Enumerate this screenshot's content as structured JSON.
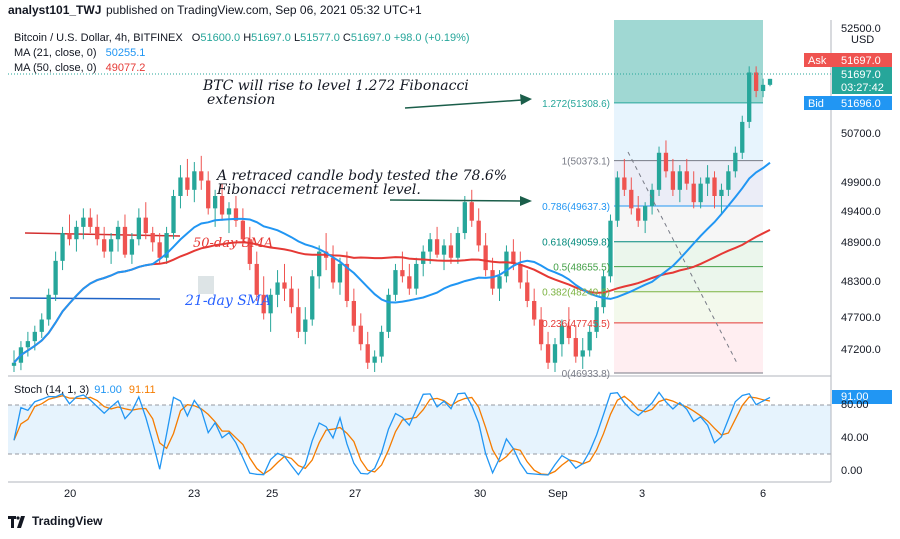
{
  "header": {
    "author": "analyst101_TWJ",
    "published_text": "published on TradingView.com, Sep 06, 2021 05:32 UTC+1"
  },
  "legend": {
    "symbol": "Bitcoin / U.S. Dollar, 4h, BITFINEX",
    "open_label": "O",
    "open": "51600.0",
    "high_label": "H",
    "high": "51697.0",
    "low_label": "L",
    "low": "51577.0",
    "close_label": "C",
    "close": "51697.0",
    "change": "+98.0 (+0.19%)",
    "ma21_label": "MA (21, close, 0)",
    "ma21_value": "50255.1",
    "ma50_label": "MA (50, close, 0)",
    "ma50_value": "49077.2"
  },
  "price_axis": {
    "currency": "USD",
    "ticks": [
      "52500.0",
      "50700.0",
      "49900.0",
      "49400.0",
      "48900.0",
      "48300.0",
      "47700.0",
      "47200.0"
    ],
    "ask_label": "Ask",
    "ask_value": "51697.0",
    "last_value": "51697.0",
    "countdown": "03:27:42",
    "bid_label": "Bid",
    "bid_value": "51696.0"
  },
  "stoch_panel": {
    "label": "Stoch (14, 1, 3)",
    "k_value": "91.00",
    "d_value": "91.11",
    "ticks": [
      "80.00",
      "40.00",
      "0.00"
    ]
  },
  "time_axis": {
    "ticks": [
      "20",
      "23",
      "25",
      "27",
      "30",
      "Sep",
      "3",
      "6"
    ]
  },
  "annotations": {
    "note_fib_extension_line1": "BTC will rise to level 1.272 Fibonacci",
    "note_fib_extension_line2": "extension",
    "note_retrace_line1": "A retraced candle body tested the 78.6%",
    "note_retrace_line2": "Fibonacci retracement level.",
    "label_50sma": "50-day SMA",
    "label_21sma": "21-day SMA"
  },
  "fib_levels": [
    {
      "label": "1.272(51308.6)",
      "price": 51308.6
    },
    {
      "label": "1(50373.1)",
      "price": 50373.1
    },
    {
      "label": "0.786(49637.3)",
      "price": 49637.3
    },
    {
      "label": "0.618(49059.8)",
      "price": 49059.8
    },
    {
      "label": "0.5(48655.5)",
      "price": 48655.5
    },
    {
      "label": "0.382(48249.6)",
      "price": 48249.6
    },
    {
      "label": "0.236(47745.5)",
      "price": 47745.5
    },
    {
      "label": "0(46933.8)",
      "price": 46933.8
    }
  ],
  "footer": {
    "brand": "TradingView"
  },
  "colors": {
    "up": "#26a69a",
    "down": "#ef5350",
    "ma21": "#2196f3",
    "ma50": "#e53935",
    "stoch_k": "#2196f3",
    "stoch_d": "#f57c00",
    "ask_bg": "#ef5350",
    "bid_bg": "#2196f3",
    "arrow": "#1b5e4a",
    "sma_label": "#2962ff",
    "sma50_label": "#e53935"
  },
  "chart_data": {
    "type": "candlestick",
    "price_range": [
      46933.8,
      52650
    ],
    "ohlc": [
      [
        47050,
        47300,
        46950,
        47100
      ],
      [
        47100,
        47450,
        46980,
        47350
      ],
      [
        47350,
        47600,
        47200,
        47450
      ],
      [
        47450,
        47700,
        47300,
        47600
      ],
      [
        47600,
        47900,
        47500,
        47800
      ],
      [
        47800,
        48300,
        47700,
        48200
      ],
      [
        48200,
        48900,
        48100,
        48750
      ],
      [
        48750,
        49300,
        48600,
        49200
      ],
      [
        49200,
        49500,
        49000,
        49100
      ],
      [
        49100,
        49400,
        48900,
        49300
      ],
      [
        49300,
        49600,
        49100,
        49450
      ],
      [
        49450,
        49600,
        49200,
        49300
      ],
      [
        49300,
        49500,
        49000,
        49100
      ],
      [
        49100,
        49300,
        48800,
        48900
      ],
      [
        48900,
        49200,
        48700,
        49100
      ],
      [
        49100,
        49400,
        48900,
        49300
      ],
      [
        49300,
        49500,
        48800,
        48850
      ],
      [
        48850,
        49200,
        48700,
        49100
      ],
      [
        49100,
        49600,
        49000,
        49450
      ],
      [
        49450,
        49700,
        49100,
        49200
      ],
      [
        49200,
        49300,
        48900,
        49050
      ],
      [
        49050,
        49200,
        48700,
        48800
      ],
      [
        48800,
        49300,
        48700,
        49200
      ],
      [
        49200,
        49900,
        49100,
        49800
      ],
      [
        49800,
        50300,
        49600,
        50100
      ],
      [
        50100,
        50400,
        49800,
        49900
      ],
      [
        49900,
        50350,
        49700,
        50200
      ],
      [
        50200,
        50450,
        49900,
        50050
      ],
      [
        50050,
        50200,
        49500,
        49600
      ],
      [
        49600,
        49900,
        49300,
        49800
      ],
      [
        49800,
        50000,
        49400,
        49500
      ],
      [
        49500,
        49700,
        49200,
        49600
      ],
      [
        49600,
        49800,
        49300,
        49400
      ],
      [
        49400,
        49600,
        49000,
        49100
      ],
      [
        49100,
        49300,
        48600,
        48700
      ],
      [
        48700,
        48900,
        48100,
        48200
      ],
      [
        48200,
        48500,
        47800,
        47900
      ],
      [
        47900,
        48300,
        47600,
        48200
      ],
      [
        48200,
        48600,
        48000,
        48400
      ],
      [
        48400,
        48700,
        48100,
        48300
      ],
      [
        48300,
        48500,
        47900,
        48000
      ],
      [
        48000,
        48300,
        47500,
        47600
      ],
      [
        47600,
        48000,
        47400,
        47800
      ],
      [
        47800,
        48600,
        47700,
        48500
      ],
      [
        48500,
        49000,
        48300,
        48900
      ],
      [
        48900,
        49200,
        48600,
        48800
      ],
      [
        48800,
        49000,
        48300,
        48400
      ],
      [
        48400,
        48800,
        48200,
        48700
      ],
      [
        48700,
        48900,
        48000,
        48100
      ],
      [
        48100,
        48300,
        47600,
        47700
      ],
      [
        47700,
        47900,
        47300,
        47400
      ],
      [
        47400,
        47600,
        47000,
        47100
      ],
      [
        47100,
        47300,
        46950,
        47200
      ],
      [
        47200,
        47700,
        47100,
        47600
      ],
      [
        47600,
        48300,
        47500,
        48200
      ],
      [
        48200,
        48700,
        48100,
        48600
      ],
      [
        48600,
        48900,
        48400,
        48500
      ],
      [
        48500,
        48700,
        48200,
        48300
      ],
      [
        48300,
        48800,
        48200,
        48700
      ],
      [
        48700,
        49000,
        48500,
        48900
      ],
      [
        48900,
        49200,
        48700,
        49100
      ],
      [
        49100,
        49300,
        48800,
        48850
      ],
      [
        48850,
        49100,
        48600,
        49000
      ],
      [
        49000,
        49200,
        48700,
        48800
      ],
      [
        48800,
        49300,
        48700,
        49200
      ],
      [
        49200,
        49800,
        49100,
        49700
      ],
      [
        49700,
        49900,
        49300,
        49400
      ],
      [
        49400,
        49600,
        48900,
        49000
      ],
      [
        49000,
        49200,
        48500,
        48600
      ],
      [
        48600,
        48800,
        48200,
        48300
      ],
      [
        48300,
        48600,
        48100,
        48500
      ],
      [
        48500,
        49000,
        48400,
        48900
      ],
      [
        48900,
        49100,
        48600,
        48700
      ],
      [
        48700,
        48900,
        48300,
        48400
      ],
      [
        48400,
        48600,
        48000,
        48100
      ],
      [
        48100,
        48300,
        47700,
        47800
      ],
      [
        47800,
        48000,
        47300,
        47400
      ],
      [
        47400,
        47600,
        47000,
        47100
      ],
      [
        47100,
        47500,
        46950,
        47400
      ],
      [
        47400,
        47800,
        47200,
        47700
      ],
      [
        47700,
        48000,
        47400,
        47500
      ],
      [
        47500,
        47700,
        47100,
        47200
      ],
      [
        47200,
        47500,
        47000,
        47300
      ],
      [
        47300,
        47700,
        47200,
        47600
      ],
      [
        47600,
        48100,
        47500,
        48000
      ],
      [
        48000,
        48600,
        47900,
        48500
      ],
      [
        48500,
        49500,
        48400,
        49400
      ],
      [
        49400,
        50200,
        49300,
        50100
      ],
      [
        50100,
        50400,
        49800,
        49900
      ],
      [
        49900,
        50100,
        49500,
        49600
      ],
      [
        49600,
        49800,
        49300,
        49400
      ],
      [
        49400,
        49700,
        49200,
        49637
      ],
      [
        49637,
        50000,
        49500,
        49900
      ],
      [
        49900,
        50600,
        49800,
        50500
      ],
      [
        50500,
        50700,
        50100,
        50200
      ],
      [
        50200,
        50400,
        49800,
        49900
      ],
      [
        49900,
        50300,
        49700,
        50200
      ],
      [
        50200,
        50400,
        49900,
        50000
      ],
      [
        50000,
        50200,
        49600,
        49700
      ],
      [
        49700,
        50100,
        49600,
        50000
      ],
      [
        50000,
        50300,
        49800,
        50100
      ],
      [
        50100,
        50200,
        49600,
        49800
      ],
      [
        49800,
        50000,
        49500,
        49900
      ],
      [
        49900,
        50300,
        49800,
        50200
      ],
      [
        50200,
        50600,
        50100,
        50500
      ],
      [
        50500,
        51100,
        50400,
        51000
      ],
      [
        51000,
        51900,
        50900,
        51800
      ],
      [
        51800,
        51900,
        51400,
        51500
      ],
      [
        51500,
        51700,
        51400,
        51600
      ],
      [
        51600,
        51697,
        51577,
        51697
      ]
    ]
  }
}
